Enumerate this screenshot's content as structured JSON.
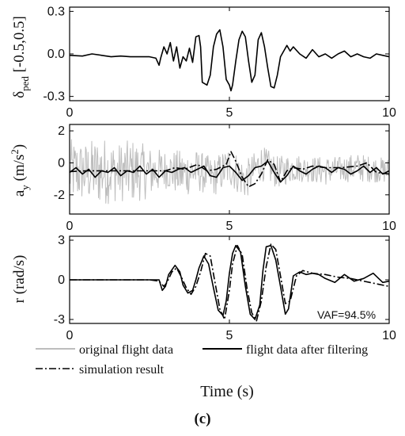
{
  "chart_data": [
    {
      "type": "line",
      "ylabel": "δped [-0.5,0.5]",
      "ylabel_main": "δ",
      "ylabel_sub": "ped",
      "ylabel_rest": " [-0.5,0.5]",
      "xlim": [
        0,
        10
      ],
      "ylim": [
        -0.33,
        0.33
      ],
      "yticks": [
        "0.3",
        "0.0",
        "-0.3"
      ],
      "ytick_values": [
        0.3,
        0.0,
        -0.3
      ],
      "xticks": [
        "0",
        "5",
        "10"
      ],
      "xtick_values": [
        0,
        5,
        10
      ],
      "series": [
        {
          "color": "#000000",
          "style": "solid",
          "x": [
            0.0,
            0.4,
            0.7,
            1.0,
            1.3,
            1.6,
            1.9,
            2.2,
            2.5,
            2.7,
            2.8,
            2.85,
            2.95,
            3.05,
            3.15,
            3.25,
            3.35,
            3.45,
            3.55,
            3.65,
            3.75,
            3.85,
            3.95,
            4.05,
            4.1,
            4.15,
            4.3,
            4.4,
            4.5,
            4.6,
            4.7,
            4.8,
            4.9,
            5.0,
            5.05,
            5.1,
            5.2,
            5.3,
            5.4,
            5.5,
            5.6,
            5.7,
            5.8,
            5.9,
            6.0,
            6.1,
            6.2,
            6.3,
            6.4,
            6.5,
            6.6,
            6.7,
            6.8,
            6.9,
            7.0,
            7.2,
            7.4,
            7.6,
            7.8,
            8.0,
            8.2,
            8.4,
            8.6,
            8.8,
            9.0,
            9.2,
            9.4,
            9.6,
            9.8,
            10.0
          ],
          "y": [
            -0.01,
            -0.015,
            0.0,
            -0.01,
            -0.02,
            -0.015,
            -0.02,
            -0.02,
            -0.02,
            -0.03,
            -0.08,
            -0.03,
            0.05,
            0.0,
            0.08,
            -0.05,
            0.05,
            -0.1,
            -0.02,
            -0.05,
            0.04,
            -0.06,
            0.12,
            0.13,
            0.05,
            -0.2,
            -0.22,
            -0.15,
            0.05,
            0.14,
            0.17,
            0.05,
            -0.18,
            -0.22,
            -0.26,
            -0.22,
            -0.05,
            0.1,
            0.16,
            0.12,
            -0.05,
            -0.2,
            -0.15,
            0.1,
            0.15,
            0.05,
            -0.1,
            -0.23,
            -0.24,
            -0.15,
            -0.02,
            0.02,
            0.06,
            0.02,
            0.05,
            0.0,
            -0.03,
            0.03,
            -0.02,
            0.0,
            -0.03,
            0.0,
            0.02,
            -0.02,
            0.0,
            -0.02,
            -0.03,
            0.0,
            -0.01,
            -0.02
          ]
        }
      ]
    },
    {
      "type": "line",
      "ylabel": "ay (m/s2)",
      "ylabel_main": "a",
      "ylabel_sub": "y",
      "ylabel_rest": " (m/s",
      "ylabel_sup": "2",
      "ylabel_close": ")",
      "xlim": [
        0,
        10
      ],
      "ylim": [
        -3.2,
        2.4
      ],
      "yticks": [
        "2",
        "0",
        "-2"
      ],
      "ytick_values": [
        2,
        0,
        -2
      ],
      "xticks": [
        "0",
        "5",
        "10"
      ],
      "xtick_values": [
        0,
        5,
        10
      ],
      "series": [
        {
          "name": "original flight data",
          "color": "#bdbdbd",
          "style": "solid",
          "noise": true,
          "x": [
            0.0,
            0.5,
            1.0,
            1.5,
            2.0,
            2.5,
            3.0,
            3.5,
            4.0,
            4.5,
            5.0,
            5.5,
            6.0,
            6.5,
            7.0,
            7.5,
            8.0,
            8.5,
            9.0,
            9.5,
            10.0
          ],
          "y": [
            -0.5,
            -0.6,
            -0.5,
            -0.6,
            -0.5,
            -0.6,
            -0.4,
            -0.7,
            -0.5,
            -0.9,
            -0.2,
            -1.1,
            0.0,
            -0.6,
            -0.3,
            -0.4,
            -0.5,
            -0.4,
            -0.3,
            -0.4,
            -0.5
          ],
          "amplitude": [
            2.0,
            1.9,
            2.2,
            1.8,
            2.0,
            1.6,
            1.2,
            1.5,
            1.3,
            1.2,
            1.3,
            1.2,
            1.1,
            1.0,
            0.9,
            0.8,
            0.9,
            0.8,
            0.9,
            0.8,
            0.8
          ]
        },
        {
          "name": "flight data after filtering",
          "color": "#000000",
          "style": "solid",
          "x": [
            0.0,
            0.2,
            0.4,
            0.6,
            0.8,
            1.0,
            1.2,
            1.4,
            1.6,
            1.8,
            2.0,
            2.2,
            2.4,
            2.6,
            2.8,
            3.0,
            3.2,
            3.4,
            3.6,
            3.8,
            4.0,
            4.2,
            4.4,
            4.6,
            4.8,
            5.0,
            5.2,
            5.4,
            5.6,
            5.8,
            6.0,
            6.2,
            6.4,
            6.6,
            6.8,
            7.0,
            7.2,
            7.4,
            7.6,
            7.8,
            8.0,
            8.2,
            8.4,
            8.6,
            8.8,
            9.0,
            9.2,
            9.4,
            9.6,
            9.8,
            10.0
          ],
          "y": [
            -0.6,
            -0.3,
            -0.7,
            -0.4,
            -0.9,
            -0.5,
            -0.6,
            -0.3,
            -0.8,
            -0.5,
            -0.6,
            -0.2,
            -0.7,
            -0.4,
            -0.9,
            -0.5,
            -0.6,
            -0.4,
            -0.3,
            -0.6,
            -0.4,
            -0.2,
            -0.8,
            -0.9,
            -0.3,
            -0.2,
            -0.6,
            -1.1,
            -0.8,
            -0.3,
            -0.2,
            0.1,
            -0.6,
            -1.2,
            -0.8,
            -0.2,
            -0.5,
            -0.7,
            -0.4,
            -0.2,
            -0.3,
            -0.6,
            -0.3,
            -0.4,
            -0.7,
            -0.5,
            -0.2,
            -0.6,
            -0.3,
            -0.7,
            -0.5
          ]
        },
        {
          "name": "simulation result",
          "color": "#000000",
          "style": "dashdot",
          "x": [
            0.0,
            0.5,
            1.0,
            1.5,
            2.0,
            2.5,
            3.0,
            3.3,
            3.6,
            4.0,
            4.3,
            4.6,
            4.9,
            5.05,
            5.2,
            5.4,
            5.6,
            5.8,
            6.0,
            6.2,
            6.4,
            6.6,
            6.8,
            7.0,
            7.3,
            7.6,
            8.0,
            8.5,
            9.0,
            9.3,
            9.6,
            10.0
          ],
          "y": [
            -0.55,
            -0.5,
            -0.5,
            -0.5,
            -0.5,
            -0.5,
            -0.5,
            -0.3,
            -0.4,
            -0.1,
            -0.5,
            -0.4,
            -0.1,
            0.7,
            0.1,
            -0.9,
            -1.5,
            -1.3,
            -0.7,
            0.2,
            -0.1,
            -1.2,
            -0.5,
            -0.3,
            -0.4,
            -0.2,
            -0.3,
            -0.3,
            -0.2,
            0.0,
            -0.6,
            -0.7
          ]
        }
      ]
    },
    {
      "type": "line",
      "ylabel": "r (rad/s)",
      "xlim": [
        0,
        10
      ],
      "ylim": [
        -3.3,
        3.3
      ],
      "yticks": [
        "3",
        "0",
        "-3"
      ],
      "ytick_values": [
        3,
        0,
        -3
      ],
      "xticks": [
        "0",
        "5",
        "10"
      ],
      "xtick_values": [
        0,
        5,
        10
      ],
      "annotation": "VAF=94.5%",
      "series": [
        {
          "name": "flight data after filtering",
          "color": "#000000",
          "style": "solid",
          "x": [
            0.0,
            0.5,
            1.0,
            1.5,
            2.0,
            2.5,
            2.8,
            2.9,
            3.0,
            3.1,
            3.3,
            3.45,
            3.55,
            3.7,
            3.85,
            3.95,
            4.05,
            4.2,
            4.35,
            4.5,
            4.65,
            4.8,
            4.9,
            5.0,
            5.1,
            5.2,
            5.35,
            5.5,
            5.65,
            5.8,
            5.95,
            6.05,
            6.15,
            6.3,
            6.45,
            6.6,
            6.75,
            6.85,
            7.0,
            7.2,
            7.4,
            7.6,
            7.8,
            8.0,
            8.3,
            8.6,
            8.9,
            9.2,
            9.5,
            9.8,
            10.0
          ],
          "y": [
            0.0,
            0.0,
            0.0,
            0.0,
            0.0,
            0.0,
            0.0,
            -0.8,
            -0.5,
            0.4,
            1.1,
            0.6,
            -0.4,
            -1.0,
            -0.8,
            0.0,
            0.9,
            1.8,
            1.2,
            -0.6,
            -2.3,
            -2.7,
            -1.6,
            0.5,
            2.0,
            2.6,
            2.1,
            -0.5,
            -2.6,
            -3.0,
            -1.9,
            0.7,
            2.5,
            2.6,
            1.5,
            -0.5,
            -2.6,
            -2.2,
            0.3,
            0.6,
            0.4,
            0.5,
            0.4,
            0.1,
            -0.2,
            0.4,
            -0.1,
            0.1,
            0.5,
            -0.2,
            -0.1
          ]
        },
        {
          "name": "simulation result",
          "color": "#000000",
          "style": "dashdot",
          "x": [
            0.0,
            0.5,
            1.0,
            1.5,
            2.0,
            2.5,
            2.8,
            2.95,
            3.05,
            3.2,
            3.35,
            3.5,
            3.65,
            3.8,
            3.95,
            4.1,
            4.25,
            4.4,
            4.55,
            4.7,
            4.85,
            5.0,
            5.1,
            5.25,
            5.4,
            5.55,
            5.7,
            5.85,
            6.0,
            6.15,
            6.3,
            6.45,
            6.6,
            6.75,
            6.9,
            7.1,
            7.3,
            7.6,
            8.0,
            8.4,
            8.8,
            9.2,
            9.6,
            10.0
          ],
          "y": [
            0.0,
            0.0,
            0.0,
            0.0,
            0.0,
            0.0,
            -0.1,
            -0.5,
            -0.2,
            0.6,
            0.9,
            0.2,
            -0.6,
            -1.1,
            -0.5,
            0.6,
            2.0,
            1.8,
            -0.2,
            -2.2,
            -3.0,
            -0.8,
            1.2,
            2.6,
            1.9,
            -0.6,
            -2.5,
            -3.1,
            -1.6,
            1.0,
            2.7,
            2.3,
            0.3,
            -1.8,
            -1.6,
            0.3,
            0.7,
            0.5,
            0.4,
            0.2,
            0.1,
            -0.1,
            -0.3,
            -0.5
          ]
        }
      ]
    }
  ],
  "legend": [
    {
      "label": "original flight data",
      "color": "#bdbdbd",
      "style": "solid"
    },
    {
      "label": "flight data after filtering",
      "color": "#000000",
      "style": "solid"
    },
    {
      "label": "simulation result",
      "color": "#000000",
      "style": "dashdot"
    }
  ],
  "xlabel": "Time (s)",
  "caption": "(c)"
}
